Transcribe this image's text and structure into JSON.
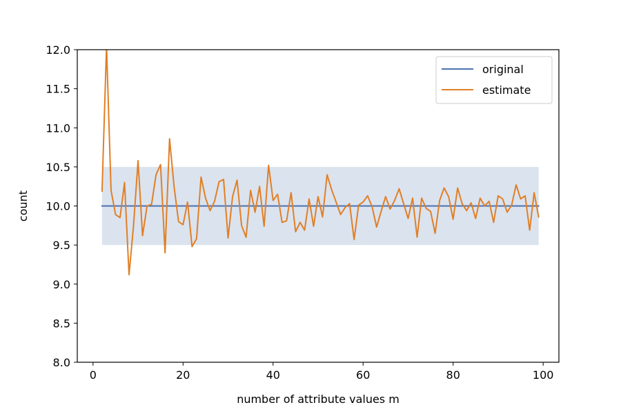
{
  "chart_data": {
    "type": "line",
    "title": "",
    "xlabel": "number of attribute values m",
    "ylabel": "count",
    "xlim": [
      -3.5,
      103.5
    ],
    "ylim": [
      8.0,
      12.0
    ],
    "xticks": [
      0,
      20,
      40,
      60,
      80,
      100
    ],
    "yticks": [
      8.0,
      8.5,
      9.0,
      9.5,
      10.0,
      10.5,
      11.0,
      11.5,
      12.0
    ],
    "xtick_labels": [
      "0",
      "20",
      "40",
      "60",
      "80",
      "100"
    ],
    "ytick_labels": [
      "8.0",
      "8.5",
      "9.0",
      "9.5",
      "10.0",
      "10.5",
      "11.0",
      "11.5",
      "12.0"
    ],
    "grid": false,
    "legend_position": "top-right",
    "band": {
      "x": [
        2,
        99
      ],
      "y": [
        9.5,
        10.5
      ],
      "color": "#dbe3ee"
    },
    "series": [
      {
        "name": "original",
        "color": "#4a72b0",
        "x": [
          2,
          99
        ],
        "y": [
          10.0,
          10.0
        ]
      },
      {
        "name": "estimate",
        "color": "#e07f26",
        "x": [
          2,
          3,
          4,
          5,
          6,
          7,
          8,
          9,
          10,
          11,
          12,
          13,
          14,
          15,
          16,
          17,
          18,
          19,
          20,
          21,
          22,
          23,
          24,
          25,
          26,
          27,
          28,
          29,
          30,
          31,
          32,
          33,
          34,
          35,
          36,
          37,
          38,
          39,
          40,
          41,
          42,
          43,
          44,
          45,
          46,
          47,
          48,
          49,
          50,
          51,
          52,
          53,
          54,
          55,
          56,
          57,
          58,
          59,
          60,
          61,
          62,
          63,
          64,
          65,
          66,
          67,
          68,
          69,
          70,
          71,
          72,
          73,
          74,
          75,
          76,
          77,
          78,
          79,
          80,
          81,
          82,
          83,
          84,
          85,
          86,
          87,
          88,
          89,
          90,
          91,
          92,
          93,
          94,
          95,
          96,
          97,
          98,
          99
        ],
        "y": [
          10.19,
          12.05,
          10.2,
          9.89,
          9.85,
          10.3,
          9.12,
          9.75,
          10.58,
          9.62,
          10.0,
          10.02,
          10.4,
          10.53,
          9.4,
          10.86,
          10.25,
          9.8,
          9.76,
          10.05,
          9.48,
          9.58,
          10.37,
          10.1,
          9.94,
          10.06,
          10.31,
          10.34,
          9.59,
          10.12,
          10.33,
          9.75,
          9.6,
          10.2,
          9.92,
          10.25,
          9.74,
          10.52,
          10.07,
          10.15,
          9.79,
          9.81,
          10.17,
          9.67,
          9.79,
          9.69,
          10.09,
          9.74,
          10.12,
          9.86,
          10.4,
          10.21,
          10.05,
          9.89,
          9.98,
          10.03,
          9.57,
          10.01,
          10.05,
          10.13,
          9.99,
          9.73,
          9.93,
          10.12,
          9.96,
          10.07,
          10.22,
          10.03,
          9.84,
          10.1,
          9.6,
          10.1,
          9.97,
          9.93,
          9.65,
          10.07,
          10.23,
          10.12,
          9.83,
          10.23,
          10.03,
          9.94,
          10.04,
          9.84,
          10.1,
          10.0,
          10.06,
          9.79,
          10.13,
          10.09,
          9.92,
          10.01,
          10.27,
          10.09,
          10.13,
          9.69,
          10.17,
          9.86
        ]
      }
    ]
  }
}
